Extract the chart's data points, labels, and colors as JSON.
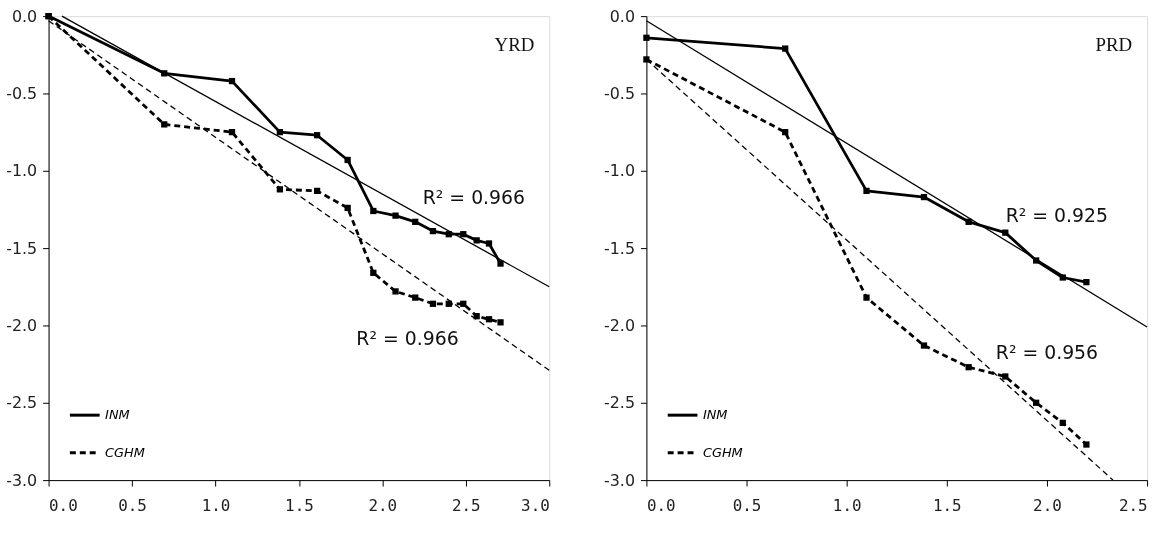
{
  "chart_data": [
    {
      "type": "line",
      "annotations": [
        "YRD",
        "R² = 0.966",
        "R² = 0.966"
      ],
      "xlim": [
        0,
        3
      ],
      "ylim": [
        -3,
        0
      ],
      "xticks": [
        {
          "value": 0,
          "label": "0.0"
        },
        0.5,
        {
          "value": 1,
          "label": "1.0"
        },
        1.5,
        {
          "value": 2,
          "label": "2.0"
        },
        2.5,
        {
          "value": 3,
          "label": "3.0"
        }
      ],
      "yticks": [
        {
          "value": 0,
          "label": "0.0"
        },
        -0.5,
        {
          "value": -1,
          "label": "-1.0"
        },
        -1.5,
        {
          "value": -2,
          "label": "-2.0"
        },
        -2.5,
        {
          "value": -3,
          "label": "-3.0"
        }
      ],
      "grid": false,
      "legend": "bottom left",
      "marker": "square",
      "series": [
        {
          "name": "INM",
          "color": "#000000",
          "line_style": "solid",
          "x": [
            0,
            0.693,
            1.099,
            1.386,
            1.609,
            1.792,
            1.946,
            2.079,
            2.197,
            2.303,
            2.398,
            2.485,
            2.565,
            2.639,
            2.708
          ],
          "values": [
            0,
            -0.37,
            -0.42,
            -0.75,
            -0.77,
            -0.93,
            -1.26,
            -1.29,
            -1.33,
            -1.39,
            -1.41,
            -1.41,
            -1.45,
            -1.47,
            -1.6
          ]
        },
        {
          "name": "CGHM",
          "color": "#000000",
          "line_style": "dashed",
          "x": [
            0,
            0.693,
            1.099,
            1.386,
            1.609,
            1.792,
            1.946,
            2.079,
            2.197,
            2.303,
            2.398,
            2.485,
            2.565,
            2.639,
            2.708
          ],
          "values": [
            0,
            -0.7,
            -0.75,
            -1.12,
            -1.13,
            -1.24,
            -1.66,
            -1.78,
            -1.82,
            -1.86,
            -1.86,
            -1.86,
            -1.94,
            -1.96,
            -1.98
          ]
        },
        {
          "type": "line",
          "color": "#000000",
          "line_style": "solid",
          "marker": "none",
          "x": [
            0.08,
            3
          ],
          "values": [
            0,
            -1.75
          ]
        },
        {
          "type": "line",
          "color": "#000000",
          "line_style": "dashed",
          "marker": "none",
          "x": [
            0,
            3
          ],
          "values": [
            -0.03,
            -2.29
          ]
        }
      ]
    },
    {
      "type": "line",
      "annotations": [
        "PRD",
        "R² = 0.925",
        "R² = 0.956"
      ],
      "xlim": [
        0,
        2.5
      ],
      "ylim": [
        -3,
        0
      ],
      "xticks": [
        {
          "value": 0,
          "label": "0.0"
        },
        0.5,
        {
          "value": 1,
          "label": "1.0"
        },
        1.5,
        {
          "value": 2,
          "label": "2.0"
        },
        2.5
      ],
      "yticks": [
        {
          "value": 0,
          "label": "0.0"
        },
        -0.5,
        {
          "value": -1,
          "label": "-1.0"
        },
        -1.5,
        {
          "value": -2,
          "label": "-2.0"
        },
        -2.5,
        {
          "value": -3,
          "label": "-3.0"
        }
      ],
      "grid": false,
      "legend": "bottom left",
      "marker": "square",
      "series": [
        {
          "name": "INM",
          "color": "#000000",
          "line_style": "solid",
          "x": [
            0,
            0.693,
            1.099,
            1.386,
            1.609,
            1.792,
            1.946,
            2.079,
            2.197
          ],
          "values": [
            -0.14,
            -0.21,
            -1.13,
            -1.17,
            -1.33,
            -1.4,
            -1.58,
            -1.69,
            -1.72
          ]
        },
        {
          "name": "CGHM",
          "color": "#000000",
          "line_style": "dashed",
          "x": [
            0,
            0.693,
            1.099,
            1.386,
            1.609,
            1.792,
            1.946,
            2.079,
            2.197
          ],
          "values": [
            -0.28,
            -0.75,
            -1.82,
            -2.13,
            -2.27,
            -2.33,
            -2.5,
            -2.63,
            -2.77
          ]
        },
        {
          "type": "line",
          "color": "#000000",
          "line_style": "solid",
          "marker": "none",
          "x": [
            0,
            2.5
          ],
          "values": [
            -0.03,
            -2.01
          ]
        },
        {
          "type": "line",
          "color": "#000000",
          "line_style": "dashed",
          "marker": "none",
          "x": [
            0,
            2.33
          ],
          "values": [
            -0.28,
            -3.0
          ]
        }
      ]
    }
  ]
}
